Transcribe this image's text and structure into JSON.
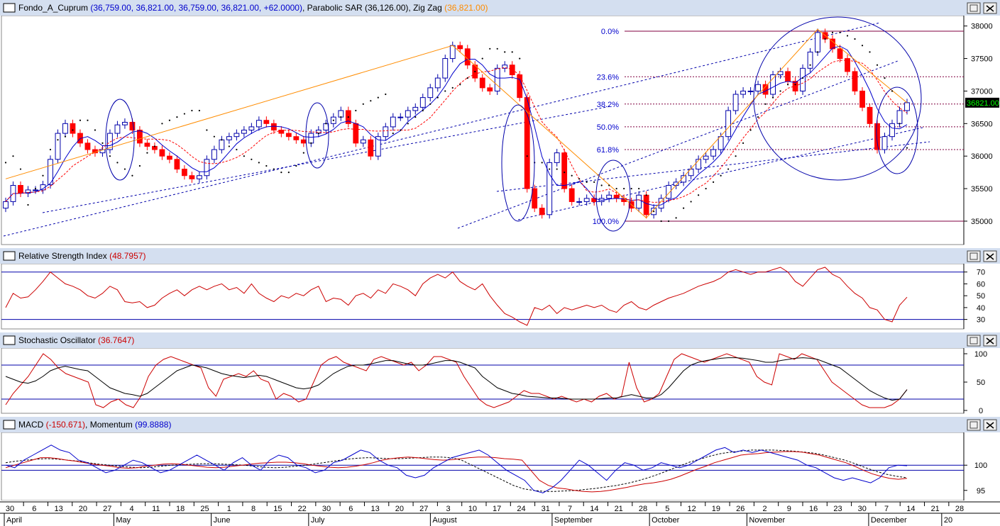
{
  "colors": {
    "background": "#ffffff",
    "title_bar": "#d4dff0",
    "bull_candle": "#ffffff",
    "bear_candle": "#ff0000",
    "price_axis_highlight": "#000000",
    "price_axis_highlight_text": "#00ff00",
    "moving_average_fast": "#0000cc",
    "moving_average_slow": "#ff0000",
    "zigzag": "#ff8c00",
    "sar": "#000000",
    "channel_lines": "#0000aa",
    "fibonacci": "#800040",
    "rsi": "#cc0000",
    "stoch_k": "#cc0000",
    "stoch_d": "#000000",
    "macd": "#cc0000",
    "momentum": "#0000cc",
    "macd_signal": "#000000"
  },
  "panels": {
    "price": {
      "title_parts": [
        {
          "text": "Fondo_A_Cuprum ",
          "color": "#000000"
        },
        {
          "text": "(36,759.00, 36,821.00, 36,759.00, 36,821.00, +62.0000)",
          "color": "#0000cc"
        },
        {
          "text": ", Parabolic SAR ",
          "color": "#000000"
        },
        {
          "text": "(36,126.00)",
          "color": "#000000"
        },
        {
          "text": ", Zig Zag ",
          "color": "#000000"
        },
        {
          "text": "(36,821.00)",
          "color": "#ff8c00"
        }
      ],
      "axis_ticks": [
        "38000",
        "37500",
        "37000",
        "36500",
        "36000",
        "35500",
        "35000"
      ],
      "last_price_label": "36821.00",
      "fib_levels": [
        {
          "label": "0.0%",
          "value": 37920
        },
        {
          "label": "23.6%",
          "value": 37220
        },
        {
          "label": "38.2%",
          "value": 36800
        },
        {
          "label": "50.0%",
          "value": 36450
        },
        {
          "label": "61.8%",
          "value": 36100
        },
        {
          "label": "100.0%",
          "value": 35000
        }
      ]
    },
    "rsi": {
      "title_parts": [
        {
          "text": "Relative Strength Index ",
          "color": "#000000"
        },
        {
          "text": "(48.7957)",
          "color": "#cc0000"
        }
      ],
      "axis_ticks": [
        "70",
        "60",
        "50",
        "40",
        "30"
      ]
    },
    "stoch": {
      "title_parts": [
        {
          "text": "Stochastic Oscillator ",
          "color": "#000000"
        },
        {
          "text": "(36.7647)",
          "color": "#cc0000"
        }
      ],
      "axis_ticks": [
        "100",
        "50",
        "0"
      ]
    },
    "macd": {
      "title_parts": [
        {
          "text": "MACD ",
          "color": "#000000"
        },
        {
          "text": "(-150.671)",
          "color": "#cc0000"
        },
        {
          "text": ", Momentum ",
          "color": "#000000"
        },
        {
          "text": "(99.8888)",
          "color": "#0000cc"
        }
      ],
      "axis_ticks": [
        "100",
        "95"
      ]
    }
  },
  "x_axis": {
    "day_labels": [
      "30",
      "6",
      "13",
      "20",
      "27",
      "4",
      "11",
      "18",
      "25",
      "1",
      "8",
      "15",
      "22",
      "30",
      "6",
      "13",
      "20",
      "27",
      "3",
      "10",
      "17",
      "24",
      "31",
      "7",
      "14",
      "21",
      "28",
      "5",
      "12",
      "19",
      "26",
      "2",
      "9",
      "16",
      "23",
      "30",
      "7",
      "14",
      "21",
      "28"
    ],
    "month_labels": [
      "April",
      "May",
      "June",
      "July",
      "August",
      "September",
      "October",
      "November",
      "December",
      "20"
    ]
  },
  "chart_data": {
    "type": "candlestick",
    "series_note": "",
    "close": [
      35300,
      35550,
      35430,
      35480,
      35480,
      35560,
      35950,
      36350,
      36500,
      36350,
      36200,
      36100,
      36050,
      36100,
      36350,
      36480,
      36520,
      36400,
      36200,
      36150,
      36100,
      36000,
      35950,
      35800,
      35700,
      35650,
      35700,
      35950,
      36100,
      36250,
      36300,
      36350,
      36400,
      36450,
      36550,
      36500,
      36400,
      36350,
      36300,
      36250,
      36200,
      36350,
      36400,
      36500,
      36600,
      36700,
      36500,
      36200,
      36250,
      36000,
      36300,
      36450,
      36600,
      36600,
      36700,
      36750,
      36900,
      37050,
      37200,
      37500,
      37700,
      37650,
      37400,
      37200,
      37050,
      37000,
      37350,
      37400,
      37250,
      36900,
      35500,
      35200,
      35100,
      35900,
      36050,
      35500,
      35300,
      35300,
      35350,
      35300,
      35350,
      35400,
      35350,
      35300,
      35200,
      35400,
      35100,
      35200,
      35350,
      35550,
      35600,
      35700,
      35800,
      35950,
      36000,
      36100,
      36300,
      36700,
      36950,
      37000,
      37000,
      37100,
      36950,
      37250,
      37300,
      37150,
      37000,
      37350,
      37600,
      37900,
      37800,
      37650,
      37500,
      37300,
      37000,
      36750,
      36500,
      36100,
      36300,
      36500,
      36700,
      36821
    ],
    "sar": [
      35900,
      36000,
      35800,
      35250,
      35500,
      35700,
      36100,
      36250,
      36300,
      36400,
      36550,
      36550,
      36400,
      36200,
      36000,
      35900,
      35800,
      35700,
      35850,
      36050,
      36150,
      36500,
      36550,
      36600,
      36650,
      36700,
      36700,
      36400,
      36300,
      36250,
      36150,
      36100,
      36000,
      35950,
      35900,
      35850,
      35800,
      35750,
      35750,
      35850,
      36050,
      36200,
      36350,
      36500,
      36550,
      36600,
      36600,
      36700,
      36800,
      36850,
      36900,
      36950,
      36350,
      36400,
      36500,
      36600,
      36700,
      36800,
      36900,
      37000,
      37050,
      37100,
      37200,
      37300,
      37500,
      37650,
      37650,
      37600,
      37600,
      37500,
      36000,
      35900,
      35900,
      35800,
      35800,
      35750,
      35700,
      35650,
      35600,
      35600,
      35550,
      35550,
      35500,
      35500,
      35500,
      35500,
      35400,
      35150,
      35000,
      35000,
      35050,
      35200,
      35300,
      35400,
      35500,
      35600,
      35700,
      35800,
      36000,
      36200,
      36400,
      36600,
      36800,
      36900,
      37000,
      37100,
      37100,
      37200,
      37400,
      37600,
      37800,
      37900,
      37900,
      37850,
      37800,
      37700,
      37600,
      37400,
      37200,
      37000,
      36500,
      36126
    ],
    "zigzag": [
      [
        0,
        35650
      ],
      [
        60,
        37700
      ],
      [
        86,
        35050
      ],
      [
        109,
        37950
      ],
      [
        121,
        36821
      ]
    ],
    "rsi": [
      40,
      52,
      48,
      49,
      55,
      62,
      70,
      65,
      60,
      58,
      55,
      50,
      48,
      52,
      58,
      55,
      45,
      44,
      45,
      40,
      42,
      48,
      52,
      55,
      50,
      55,
      58,
      55,
      58,
      60,
      55,
      57,
      52,
      60,
      52,
      48,
      45,
      50,
      48,
      52,
      50,
      55,
      58,
      45,
      48,
      47,
      42,
      50,
      52,
      48,
      55,
      52,
      60,
      58,
      55,
      50,
      60,
      65,
      68,
      65,
      70,
      62,
      58,
      55,
      60,
      50,
      42,
      35,
      32,
      28,
      25,
      40,
      38,
      42,
      35,
      40,
      38,
      40,
      42,
      40,
      42,
      38,
      36,
      42,
      45,
      40,
      38,
      42,
      45,
      48,
      50,
      52,
      55,
      58,
      60,
      62,
      65,
      70,
      72,
      70,
      68,
      70,
      70,
      72,
      74,
      70,
      62,
      58,
      65,
      72,
      74,
      68,
      65,
      58,
      52,
      48,
      40,
      38,
      30,
      28,
      42,
      48.7957
    ],
    "stoch_k": [
      10,
      30,
      45,
      60,
      80,
      100,
      90,
      75,
      65,
      60,
      55,
      50,
      10,
      5,
      15,
      20,
      10,
      5,
      25,
      60,
      80,
      90,
      95,
      90,
      85,
      80,
      75,
      40,
      25,
      55,
      60,
      65,
      60,
      70,
      55,
      50,
      20,
      30,
      25,
      15,
      20,
      50,
      80,
      90,
      95,
      85,
      80,
      75,
      70,
      90,
      95,
      90,
      85,
      80,
      85,
      70,
      80,
      95,
      95,
      90,
      85,
      60,
      40,
      20,
      10,
      5,
      10,
      15,
      25,
      35,
      30,
      30,
      25,
      20,
      25,
      20,
      15,
      20,
      15,
      25,
      30,
      20,
      25,
      85,
      40,
      15,
      20,
      30,
      60,
      90,
      100,
      95,
      90,
      85,
      90,
      95,
      100,
      95,
      90,
      85,
      60,
      50,
      45,
      100,
      95,
      90,
      100,
      95,
      90,
      70,
      50,
      40,
      30,
      20,
      10,
      5,
      5,
      5,
      10,
      20,
      36.7647
    ],
    "stoch_d": [
      60,
      55,
      50,
      48,
      52,
      60,
      70,
      75,
      78,
      75,
      72,
      70,
      60,
      50,
      40,
      35,
      30,
      28,
      25,
      30,
      40,
      50,
      60,
      70,
      75,
      80,
      78,
      75,
      70,
      65,
      62,
      60,
      58,
      60,
      62,
      60,
      55,
      50,
      45,
      40,
      38,
      40,
      45,
      55,
      65,
      72,
      78,
      80,
      80,
      82,
      85,
      88,
      88,
      85,
      82,
      80,
      80,
      82,
      85,
      88,
      88,
      85,
      80,
      75,
      60,
      50,
      40,
      35,
      30,
      28,
      25,
      24,
      23,
      22,
      22,
      21,
      20,
      20,
      20,
      20,
      21,
      22,
      22,
      25,
      28,
      25,
      22,
      22,
      28,
      40,
      55,
      70,
      80,
      85,
      88,
      90,
      92,
      93,
      93,
      92,
      90,
      88,
      85,
      85,
      88,
      90,
      92,
      93,
      92,
      90,
      85,
      80,
      75,
      65,
      55,
      45,
      35,
      28,
      22,
      18,
      20,
      36.7647
    ],
    "macd": [
      99.5,
      100,
      100.5,
      101,
      101.5,
      101.5,
      101.3,
      101,
      100.8,
      100.5,
      100.2,
      100,
      99.8,
      99.5,
      99.4,
      99.5,
      99.8,
      100,
      100.2,
      100.3,
      100.2,
      100,
      99.8,
      99.6,
      99.5,
      99.6,
      99.8,
      100,
      100.2,
      100.4,
      100.5,
      100.6,
      100.6,
      100.5,
      100.3,
      100,
      99.8,
      99.6,
      99.5,
      99.6,
      99.8,
      100.1,
      100.5,
      101,
      101.3,
      101.5,
      101.6,
      101.5,
      101.3,
      101.1,
      101,
      101.1,
      101.3,
      101.5,
      101.6,
      101.6,
      101.5,
      101.3,
      101.2,
      101,
      99,
      97,
      96,
      95.5,
      95.3,
      95,
      94.8,
      94.7,
      94.8,
      95,
      95.3,
      95.6,
      96,
      96.3,
      96.5,
      96.8,
      97.2,
      97.8,
      98.5,
      99.2,
      99.8,
      100.5,
      101,
      101.5,
      102,
      102.2,
      102.3,
      102.5,
      102.6,
      102.7,
      102.7,
      102.6,
      102.3,
      102,
      101.5,
      101,
      100.5,
      99.8,
      99,
      98.3,
      97.8,
      97.4,
      97.2,
      97.4
    ],
    "momentum": [
      100,
      99.5,
      101,
      102,
      103,
      104,
      103,
      102.5,
      101,
      100.5,
      99.5,
      98.5,
      99,
      100,
      101,
      100.5,
      99.5,
      98.5,
      99,
      100,
      101,
      102,
      101,
      100,
      99,
      100.5,
      101.5,
      100,
      99,
      101,
      102,
      101.5,
      100,
      99.5,
      98.5,
      99,
      100.5,
      101,
      102,
      103,
      102.5,
      101,
      100,
      99.5,
      98,
      97.5,
      98,
      99.5,
      100.5,
      101.5,
      102,
      102.5,
      103,
      102,
      100.5,
      99,
      98,
      97,
      95,
      94.5,
      95.5,
      97,
      99,
      101,
      100,
      98.5,
      97,
      99,
      100.5,
      100,
      99,
      99.5,
      100.5,
      100,
      99.5,
      100,
      101,
      102,
      103,
      103.5,
      102.5,
      103,
      102.5,
      103,
      102.5,
      102,
      101.5,
      101,
      100,
      99.5,
      98.5,
      97.5,
      97,
      97.5,
      97,
      96.5,
      97.5,
      99.5,
      100,
      99.8888
    ],
    "macd_signal": [
      100.5,
      100.8,
      101,
      101.2,
      101.3,
      101.2,
      101,
      100.8,
      100.5,
      100.2,
      100,
      99.8,
      99.6,
      99.5,
      99.6,
      99.8,
      100,
      100.1,
      100.2,
      100.3,
      100.3,
      100.2,
      100.1,
      100,
      99.8,
      99.6,
      99.5,
      99.6,
      99.8,
      100,
      100.3,
      100.6,
      100.9,
      101.2,
      101.4,
      101.5,
      101.4,
      101.3,
      101.3,
      101.4,
      101.5,
      101.6,
      101.6,
      101.5,
      101,
      100,
      99,
      98,
      97,
      96,
      95.3,
      95,
      94.8,
      94.8,
      94.9,
      95,
      95.2,
      95.4,
      95.7,
      96,
      96.4,
      96.9,
      97.5,
      98.2,
      99,
      99.8,
      100.6,
      101.2,
      101.8,
      102.3,
      102.6,
      102.8,
      103,
      103,
      103,
      102.9,
      102.8,
      102.6,
      102.4,
      102,
      101.5,
      101,
      100.3,
      99.5,
      98.8,
      98.2,
      97.8,
      97.5
    ]
  }
}
